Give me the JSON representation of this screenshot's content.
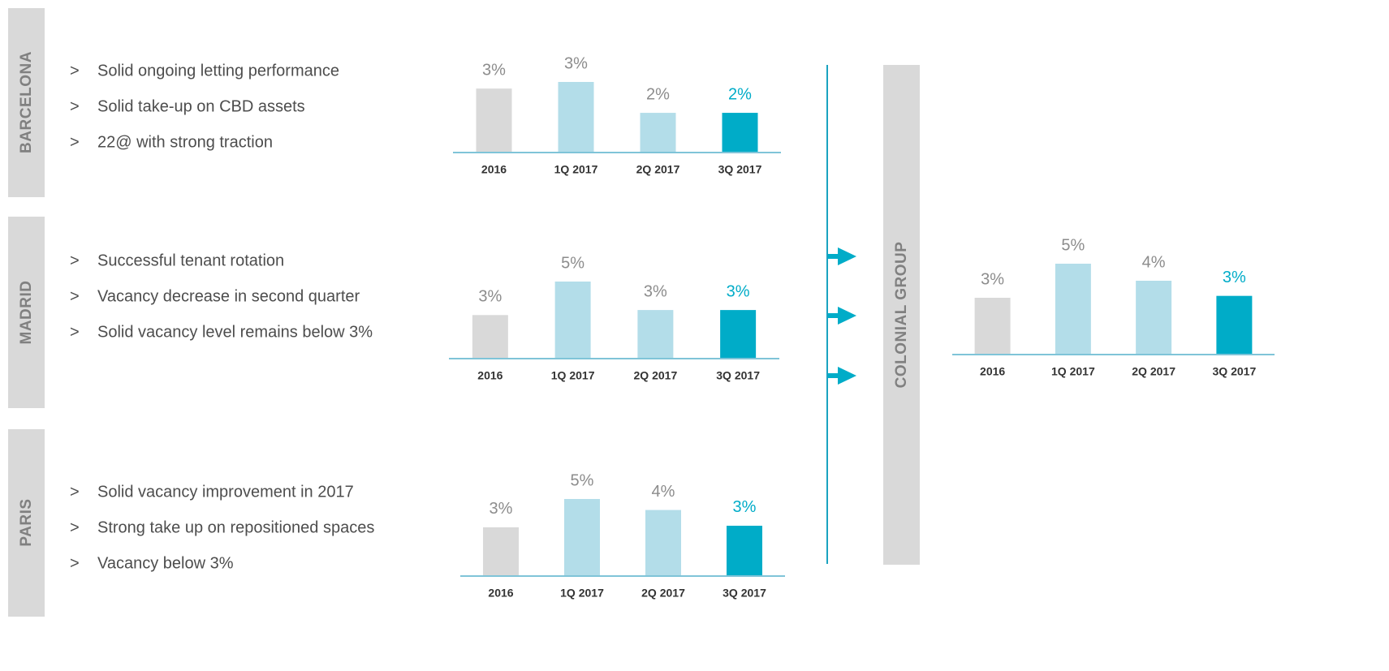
{
  "bullet_marker": ">",
  "sections": [
    {
      "label": "BARCELONA",
      "bullets": [
        "Solid ongoing letting performance",
        "Solid take-up on CBD assets",
        "22@ with strong traction"
      ]
    },
    {
      "label": "MADRID",
      "bullets": [
        "Successful tenant rotation",
        "Vacancy decrease in second quarter",
        "Solid vacancy level remains below 3%"
      ]
    },
    {
      "label": "PARIS",
      "bullets": [
        "Solid vacancy improvement in 2017",
        "Strong take up on repositioned spaces",
        "Vacancy below 3%"
      ]
    }
  ],
  "group_label": "COLONIAL GROUP",
  "chart_data": [
    {
      "type": "bar",
      "categories": [
        "2016",
        "1Q 2017",
        "2Q 2017",
        "3Q 2017"
      ],
      "values": [
        2.9,
        3.2,
        1.8,
        1.8
      ],
      "value_labels": [
        "3%",
        "3%",
        "2%",
        "2%"
      ],
      "colors": [
        "#d9d9d9",
        "#b3dde9",
        "#b3dde9",
        "#00acc8"
      ]
    },
    {
      "type": "bar",
      "categories": [
        "2016",
        "1Q 2017",
        "2Q 2017",
        "3Q 2017"
      ],
      "values": [
        2.6,
        4.6,
        2.9,
        2.9
      ],
      "value_labels": [
        "3%",
        "5%",
        "3%",
        "3%"
      ],
      "colors": [
        "#d9d9d9",
        "#b3dde9",
        "#b3dde9",
        "#00acc8"
      ]
    },
    {
      "type": "bar",
      "categories": [
        "2016",
        "1Q 2017",
        "2Q 2017",
        "3Q 2017"
      ],
      "values": [
        3.1,
        4.9,
        4.2,
        3.2
      ],
      "value_labels": [
        "3%",
        "5%",
        "4%",
        "3%"
      ],
      "colors": [
        "#d9d9d9",
        "#b3dde9",
        "#b3dde9",
        "#00acc8"
      ]
    },
    {
      "type": "bar",
      "categories": [
        "2016",
        "1Q 2017",
        "2Q 2017",
        "3Q 2017"
      ],
      "values": [
        3.0,
        4.8,
        3.9,
        3.1
      ],
      "value_labels": [
        "3%",
        "5%",
        "4%",
        "3%"
      ],
      "colors": [
        "#d9d9d9",
        "#b3dde9",
        "#b3dde9",
        "#00acc8"
      ]
    }
  ]
}
